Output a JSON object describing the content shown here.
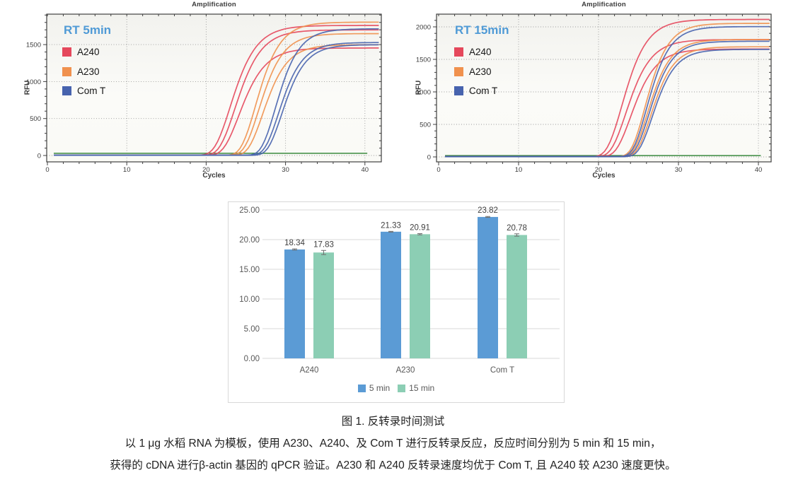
{
  "caption": {
    "line1": "图 1. 反转录时间测试",
    "line2": "以 1 μg 水稻 RNA 为模板，使用 A230、A240、及 Com T 进行反转录反应，反应时间分别为 5 min 和 15 min，",
    "line3": "获得的 cDNA 进行β-actin 基因的 qPCR 验证。A230 和 A240 反转录速度均优于 Com T, 且 A240 较 A230 速度更快。"
  },
  "chart_data": [
    {
      "type": "line",
      "title": "Amplification",
      "condition_label": "RT 5min",
      "xlabel": "Cycles",
      "ylabel": "RFU",
      "x_ticks": [
        0,
        10,
        20,
        30,
        40
      ],
      "y_ticks": [
        0,
        500,
        1000,
        1500
      ],
      "x_minor_step": 2,
      "y_minor_step": 100,
      "xlim": [
        0,
        42
      ],
      "ylim": [
        -85,
        1910
      ],
      "grid": "dotted",
      "threshold_rfu": 30,
      "threshold_color": "#3a8a3e",
      "series": [
        {
          "name": "A240",
          "color": "#e5485c",
          "curves": [
            {
              "plateau": 1755,
              "midpoint": 23.0,
              "rate": 0.52
            },
            {
              "plateau": 1695,
              "midpoint": 23.6,
              "rate": 0.52
            },
            {
              "plateau": 1450,
              "midpoint": 24.1,
              "rate": 0.52
            }
          ]
        },
        {
          "name": "A230",
          "color": "#f0914e",
          "curves": [
            {
              "plateau": 1800,
              "midpoint": 26.2,
              "rate": 0.56
            },
            {
              "plateau": 1645,
              "midpoint": 26.6,
              "rate": 0.56
            },
            {
              "plateau": 1495,
              "midpoint": 27.1,
              "rate": 0.56
            }
          ]
        },
        {
          "name": "Com T",
          "color": "#4763ae",
          "curves": [
            {
              "plateau": 1710,
              "midpoint": 28.7,
              "rate": 0.58
            },
            {
              "plateau": 1525,
              "midpoint": 29.1,
              "rate": 0.58
            },
            {
              "plateau": 1495,
              "midpoint": 29.5,
              "rate": 0.58
            }
          ]
        }
      ]
    },
    {
      "type": "line",
      "title": "Amplification",
      "condition_label": "RT 15min",
      "xlabel": "Cycles",
      "ylabel": "RFU",
      "x_ticks": [
        0,
        10,
        20,
        30,
        40
      ],
      "y_ticks": [
        0,
        500,
        1000,
        1500,
        2000
      ],
      "x_minor_step": 2,
      "y_minor_step": 100,
      "xlim": [
        0,
        41.6
      ],
      "ylim": [
        -75,
        2195
      ],
      "grid": "dotted",
      "threshold_rfu": 20,
      "threshold_color": "#3a8a3e",
      "series": [
        {
          "name": "A240",
          "color": "#e5485c",
          "curves": [
            {
              "plateau": 2110,
              "midpoint": 22.9,
              "rate": 0.55
            },
            {
              "plateau": 1800,
              "midpoint": 23.4,
              "rate": 0.55
            },
            {
              "plateau": 1655,
              "midpoint": 24.0,
              "rate": 0.55
            }
          ]
        },
        {
          "name": "A230",
          "color": "#f0914e",
          "curves": [
            {
              "plateau": 2050,
              "midpoint": 25.8,
              "rate": 0.6
            },
            {
              "plateau": 1800,
              "midpoint": 26.1,
              "rate": 0.6
            },
            {
              "plateau": 1690,
              "midpoint": 26.5,
              "rate": 0.6
            }
          ]
        },
        {
          "name": "Com T",
          "color": "#4763ae",
          "curves": [
            {
              "plateau": 2000,
              "midpoint": 26.0,
              "rate": 0.6
            },
            {
              "plateau": 1775,
              "midpoint": 26.3,
              "rate": 0.6
            },
            {
              "plateau": 1650,
              "midpoint": 26.7,
              "rate": 0.6
            }
          ]
        }
      ]
    },
    {
      "type": "bar",
      "categories": [
        "A240",
        "A230",
        "Com T"
      ],
      "series": [
        {
          "name": "5 min",
          "color": "#5b9bd5",
          "values": [
            18.34,
            21.33,
            23.82
          ],
          "errors": [
            0.1,
            0.06,
            0.08
          ]
        },
        {
          "name": "15 min",
          "color": "#8cceb4",
          "values": [
            17.83,
            20.91,
            20.78
          ],
          "errors": [
            0.35,
            0.1,
            0.2
          ]
        }
      ],
      "y_ticks": [
        0,
        5,
        10,
        15,
        20,
        25
      ],
      "ylim": [
        0,
        25
      ],
      "grid": true,
      "legend_position": "bottom",
      "value_labels": true
    }
  ]
}
